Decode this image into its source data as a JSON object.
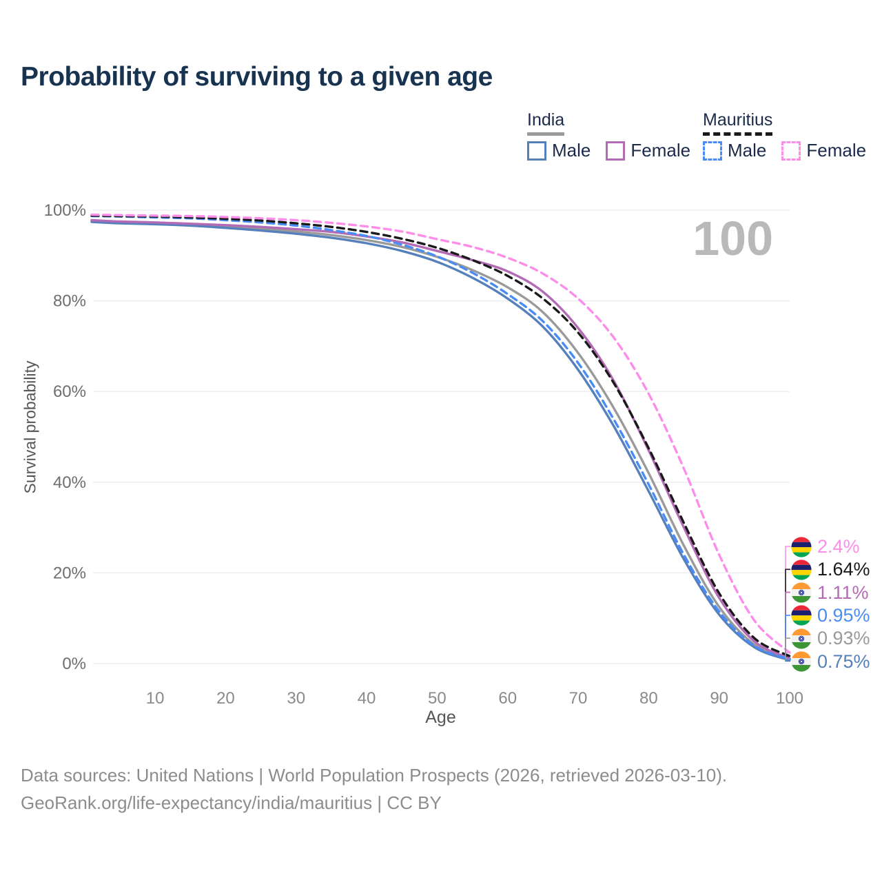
{
  "title": "Probability of surviving to a given age",
  "watermark": "100",
  "colors": {
    "title": "#17334f",
    "grid": "#ebebee",
    "y_tick": "#6e6e6e",
    "x_tick": "#8a8a8a",
    "axis_label": "#565656",
    "watermark": "#b9b9b9",
    "footer": "#8c8c8c",
    "india_male": "#5580bb",
    "india_female": "#b26bb4",
    "india_total": "#9a9a9a",
    "mauritius_male": "#4a8cf5",
    "mauritius_female": "#fc8eea",
    "mauritius_total": "#1a1a1a"
  },
  "legend": {
    "groups": [
      {
        "label": "India",
        "underline": "solid",
        "items": [
          {
            "label": "Male",
            "swatch": "india_male",
            "dashed": false
          },
          {
            "label": "Female",
            "swatch": "india_female",
            "dashed": false
          }
        ]
      },
      {
        "label": "Mauritius",
        "underline": "dashed",
        "items": [
          {
            "label": "Male",
            "swatch": "mauritius_male",
            "dashed": true
          },
          {
            "label": "Female",
            "swatch": "mauritius_female",
            "dashed": true
          }
        ]
      }
    ]
  },
  "chart_data": {
    "type": "line",
    "title": "Probability of surviving to a given age",
    "xlabel": "Age",
    "ylabel": "Survival probability",
    "xlim": [
      1,
      100
    ],
    "ylim": [
      0,
      100
    ],
    "x_ticks": [
      10,
      20,
      30,
      40,
      50,
      60,
      70,
      80,
      90,
      100
    ],
    "y_ticks": [
      0,
      20,
      40,
      60,
      80,
      100
    ],
    "y_tick_labels": [
      "0%",
      "20%",
      "40%",
      "60%",
      "80%",
      "100%"
    ],
    "grid": "horizontal",
    "legend_position": "top-right",
    "ages": [
      1,
      5,
      10,
      15,
      20,
      25,
      30,
      35,
      40,
      45,
      50,
      55,
      60,
      65,
      70,
      75,
      80,
      85,
      90,
      95,
      100
    ],
    "series": [
      {
        "name": "India Total",
        "country": "India",
        "sex": "Total",
        "color_key": "india_total",
        "dashed": false,
        "flag": "india",
        "end_label": "0.93%",
        "values": [
          97.6,
          97.3,
          97.1,
          96.8,
          96.4,
          95.9,
          95.3,
          94.5,
          93.4,
          91.9,
          89.7,
          86.8,
          83.0,
          77.5,
          68.5,
          56.5,
          42.0,
          26.0,
          12.5,
          4.2,
          0.93
        ]
      },
      {
        "name": "India Male",
        "country": "India",
        "sex": "Male",
        "color_key": "india_male",
        "dashed": false,
        "flag": "india",
        "end_label": "0.75%",
        "values": [
          97.4,
          97.1,
          96.9,
          96.6,
          96.1,
          95.5,
          94.8,
          93.9,
          92.7,
          91.0,
          88.6,
          85.1,
          80.5,
          74.3,
          64.8,
          52.5,
          38.0,
          23.0,
          10.8,
          3.6,
          0.75
        ]
      },
      {
        "name": "India Female",
        "country": "India",
        "sex": "Female",
        "color_key": "india_female",
        "dashed": false,
        "flag": "india",
        "end_label": "1.11%",
        "values": [
          97.8,
          97.5,
          97.3,
          97.0,
          96.7,
          96.3,
          95.8,
          95.2,
          94.2,
          92.9,
          91.0,
          89.0,
          86.5,
          82.0,
          74.0,
          62.5,
          47.0,
          30.0,
          14.5,
          4.9,
          1.11
        ]
      },
      {
        "name": "Mauritius Male",
        "country": "Mauritius",
        "sex": "Male",
        "color_key": "mauritius_male",
        "dashed": true,
        "flag": "mauritius",
        "end_label": "0.95%",
        "values": [
          98.7,
          98.6,
          98.4,
          98.2,
          97.8,
          97.3,
          96.6,
          95.6,
          94.3,
          92.4,
          89.8,
          86.2,
          81.5,
          75.5,
          66.3,
          54.0,
          39.5,
          24.0,
          11.5,
          3.9,
          0.95
        ]
      },
      {
        "name": "Mauritius Total",
        "country": "Mauritius",
        "sex": "Total",
        "color_key": "mauritius_total",
        "dashed": true,
        "flag": "mauritius",
        "end_label": "1.64%",
        "values": [
          98.8,
          98.7,
          98.6,
          98.4,
          98.1,
          97.7,
          97.1,
          96.3,
          95.2,
          93.7,
          91.7,
          89.0,
          85.5,
          80.5,
          73.0,
          62.0,
          47.5,
          31.0,
          15.5,
          5.6,
          1.64
        ]
      },
      {
        "name": "Mauritius Female",
        "country": "Mauritius",
        "sex": "Female",
        "color_key": "mauritius_female",
        "dashed": true,
        "flag": "mauritius",
        "end_label": "2.4%",
        "values": [
          99.0,
          98.9,
          98.8,
          98.7,
          98.5,
          98.2,
          97.8,
          97.2,
          96.4,
          95.3,
          93.6,
          91.9,
          89.5,
          86.0,
          80.5,
          72.0,
          59.5,
          43.0,
          24.0,
          9.5,
          2.4
        ]
      }
    ]
  },
  "footer": {
    "line1": "Data sources: United Nations | World Population Prospects (2026, retrieved 2026-03-10).",
    "line2": "GeoRank.org/life-expectancy/india/mauritius | CC BY"
  }
}
